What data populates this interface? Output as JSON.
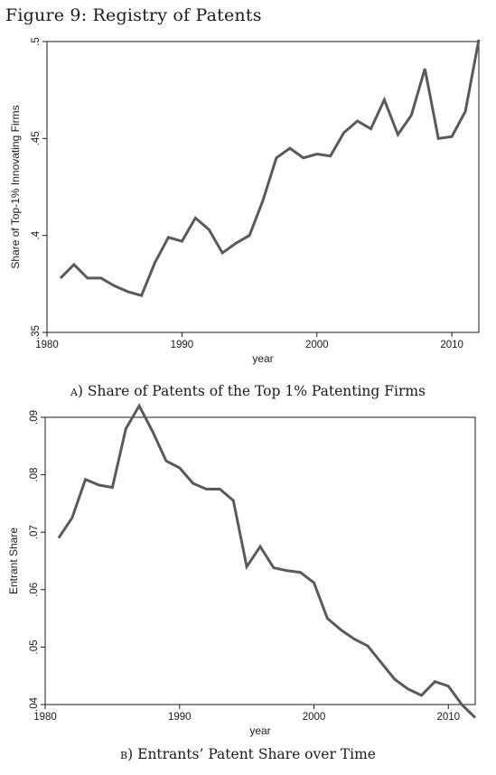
{
  "figure": {
    "title": "Figure 9: Registry of Patents"
  },
  "chart_data": [
    {
      "type": "line",
      "caption_label": "a)",
      "caption_text": "Share of Patents of the Top 1% Patenting Firms",
      "xlabel": "year",
      "ylabel": "Share of Top-1% Innovating Firms",
      "xlim": [
        1980,
        2012
      ],
      "ylim": [
        0.35,
        0.5
      ],
      "xticks": [
        1980,
        1990,
        2000,
        2010
      ],
      "xtick_labels": [
        "1980",
        "1990",
        "2000",
        "2010"
      ],
      "yticks": [
        0.35,
        0.4,
        0.45,
        0.5
      ],
      "ytick_labels": [
        ".35",
        ".4",
        ".45",
        ".5"
      ],
      "grid": false,
      "color": "#5a5a5a",
      "series": [
        {
          "x": [
            1981,
            1982,
            1983,
            1984,
            1985,
            1986,
            1987,
            1988,
            1989,
            1990,
            1991,
            1992,
            1993,
            1994,
            1995,
            1996,
            1997,
            1998,
            1999,
            2000,
            2001,
            2002,
            2003,
            2004,
            2005,
            2006,
            2007,
            2008,
            2009,
            2010,
            2011,
            2012
          ],
          "y": [
            0.378,
            0.385,
            0.378,
            0.378,
            0.374,
            0.371,
            0.369,
            0.386,
            0.399,
            0.397,
            0.409,
            0.403,
            0.391,
            0.396,
            0.4,
            0.418,
            0.44,
            0.445,
            0.44,
            0.442,
            0.441,
            0.453,
            0.459,
            0.455,
            0.47,
            0.452,
            0.462,
            0.486,
            0.45,
            0.451,
            0.464,
            0.501
          ]
        }
      ]
    },
    {
      "type": "line",
      "caption_label": "b)",
      "caption_text": "Entrants’ Patent Share over Time",
      "xlabel": "year",
      "ylabel": "Entrant Share",
      "xlim": [
        1980,
        2012
      ],
      "ylim": [
        0.04,
        0.09
      ],
      "xticks": [
        1980,
        1990,
        2000,
        2010
      ],
      "xtick_labels": [
        "1980",
        "1990",
        "2000",
        "2010"
      ],
      "yticks": [
        0.04,
        0.05,
        0.06,
        0.07,
        0.08,
        0.09
      ],
      "ytick_labels": [
        ".04",
        ".05",
        ".06",
        ".07",
        ".08",
        ".09"
      ],
      "grid": false,
      "color": "#5a5a5a",
      "series": [
        {
          "x": [
            1981,
            1982,
            1983,
            1984,
            1985,
            1986,
            1987,
            1988,
            1989,
            1990,
            1991,
            1992,
            1993,
            1994,
            1995,
            1996,
            1997,
            1998,
            1999,
            2000,
            2001,
            2002,
            2003,
            2004,
            2005,
            2006,
            2007,
            2008,
            2009,
            2010,
            2011,
            2012
          ],
          "y": [
            0.069,
            0.0725,
            0.0792,
            0.0782,
            0.0778,
            0.088,
            0.092,
            0.0875,
            0.0824,
            0.0812,
            0.0785,
            0.0775,
            0.0775,
            0.0755,
            0.064,
            0.0675,
            0.0638,
            0.0633,
            0.063,
            0.0612,
            0.055,
            0.053,
            0.0514,
            0.0502,
            0.0473,
            0.0444,
            0.0427,
            0.0416,
            0.044,
            0.0432,
            0.04,
            0.0377
          ]
        }
      ]
    }
  ]
}
